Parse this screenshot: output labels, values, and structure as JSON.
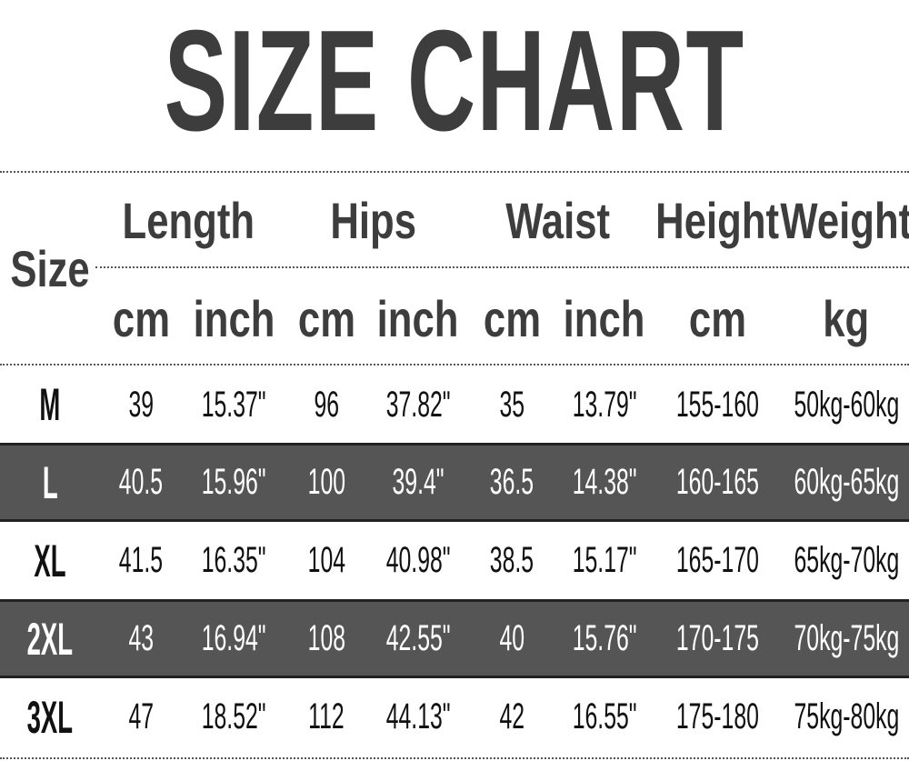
{
  "title": "SIZE CHART",
  "header": {
    "size": "Size",
    "groups": [
      "Length",
      "Hips",
      "Waist",
      "Height",
      "Weight"
    ],
    "units": [
      "cm",
      "inch",
      "cm",
      "inch",
      "cm",
      "inch",
      "cm",
      "kg"
    ]
  },
  "row_colors": {
    "light": "#ffffff",
    "dark": "#555555"
  },
  "rows": [
    {
      "size": "M",
      "values": [
        "39",
        "15.37\"",
        "96",
        "37.82\"",
        "35",
        "13.79\"",
        "155-160",
        "50kg-60kg"
      ],
      "dark": false
    },
    {
      "size": "L",
      "values": [
        "40.5",
        "15.96\"",
        "100",
        "39.4\"",
        "36.5",
        "14.38\"",
        "160-165",
        "60kg-65kg"
      ],
      "dark": true
    },
    {
      "size": "XL",
      "values": [
        "41.5",
        "16.35\"",
        "104",
        "40.98\"",
        "38.5",
        "15.17\"",
        "165-170",
        "65kg-70kg"
      ],
      "dark": false
    },
    {
      "size": "2XL",
      "values": [
        "43",
        "16.94\"",
        "108",
        "42.55\"",
        "40",
        "15.76\"",
        "170-175",
        "70kg-75kg"
      ],
      "dark": true
    },
    {
      "size": "3XL",
      "values": [
        "47",
        "18.52\"",
        "112",
        "44.13\"",
        "42",
        "16.55\"",
        "175-180",
        "75kg-80kg"
      ],
      "dark": false
    }
  ]
}
